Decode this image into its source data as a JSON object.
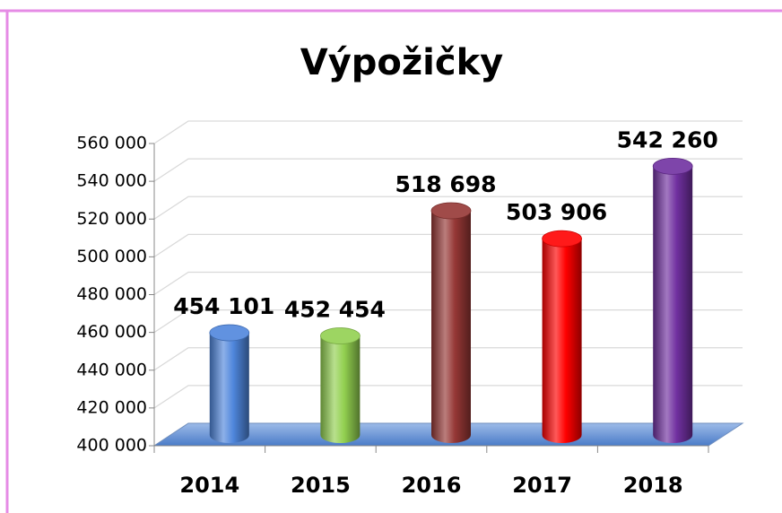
{
  "chart_data": {
    "type": "bar",
    "title": "Výpožičky",
    "categories": [
      "2014",
      "2015",
      "2016",
      "2017",
      "2018"
    ],
    "values": [
      454101,
      452454,
      518698,
      503906,
      542260
    ],
    "value_labels": [
      "454 101",
      "452 454",
      "518 698",
      "503 906",
      "542 260"
    ],
    "colors": [
      "#4f86dc",
      "#92d050",
      "#953735",
      "#ff0000",
      "#7030a0"
    ],
    "ylim": [
      400000,
      560000
    ],
    "yticks": [
      {
        "value": 400000,
        "label": "400 000"
      },
      {
        "value": 420000,
        "label": "420 000"
      },
      {
        "value": 440000,
        "label": "440 000"
      },
      {
        "value": 460000,
        "label": "460 000"
      },
      {
        "value": 480000,
        "label": "480 000"
      },
      {
        "value": 500000,
        "label": "500 000"
      },
      {
        "value": 520000,
        "label": "520 000"
      },
      {
        "value": 540000,
        "label": "540 000"
      },
      {
        "value": 560000,
        "label": "560 000"
      }
    ],
    "grid": true
  }
}
